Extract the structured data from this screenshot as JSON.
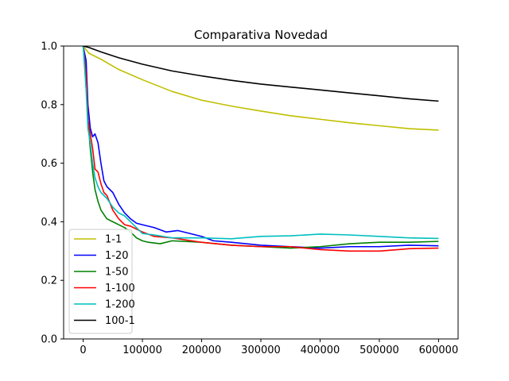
{
  "chart_data": {
    "type": "line",
    "title": "Comparativa Novedad",
    "xlabel": "",
    "ylabel": "",
    "xlim": [
      -33000,
      633000
    ],
    "ylim": [
      0.0,
      1.0
    ],
    "xticks": [
      0,
      100000,
      200000,
      300000,
      400000,
      500000,
      600000
    ],
    "xtick_labels": [
      "0",
      "100000",
      "200000",
      "300000",
      "400000",
      "500000",
      "600000"
    ],
    "yticks": [
      0.0,
      0.2,
      0.4,
      0.6,
      0.8,
      1.0
    ],
    "ytick_labels": [
      "0.0",
      "0.2",
      "0.4",
      "0.6",
      "0.8",
      "1.0"
    ],
    "grid": false,
    "legend_position": "lower-left",
    "series": [
      {
        "name": "1-1",
        "color": "#bfbf00",
        "points": [
          [
            0,
            1.0
          ],
          [
            10000,
            0.975
          ],
          [
            30000,
            0.955
          ],
          [
            60000,
            0.92
          ],
          [
            100000,
            0.885
          ],
          [
            150000,
            0.845
          ],
          [
            200000,
            0.815
          ],
          [
            250000,
            0.795
          ],
          [
            300000,
            0.778
          ],
          [
            350000,
            0.762
          ],
          [
            400000,
            0.75
          ],
          [
            450000,
            0.738
          ],
          [
            500000,
            0.728
          ],
          [
            550000,
            0.718
          ],
          [
            600000,
            0.713
          ]
        ]
      },
      {
        "name": "1-20",
        "color": "#0000ff",
        "points": [
          [
            0,
            1.0
          ],
          [
            5000,
            0.95
          ],
          [
            8000,
            0.8
          ],
          [
            12000,
            0.72
          ],
          [
            16000,
            0.69
          ],
          [
            20000,
            0.7
          ],
          [
            25000,
            0.67
          ],
          [
            30000,
            0.6
          ],
          [
            35000,
            0.54
          ],
          [
            40000,
            0.52
          ],
          [
            50000,
            0.5
          ],
          [
            60000,
            0.46
          ],
          [
            70000,
            0.43
          ],
          [
            80000,
            0.41
          ],
          [
            90000,
            0.395
          ],
          [
            100000,
            0.39
          ],
          [
            120000,
            0.38
          ],
          [
            140000,
            0.365
          ],
          [
            160000,
            0.37
          ],
          [
            180000,
            0.36
          ],
          [
            200000,
            0.35
          ],
          [
            220000,
            0.335
          ],
          [
            250000,
            0.33
          ],
          [
            300000,
            0.32
          ],
          [
            350000,
            0.315
          ],
          [
            400000,
            0.31
          ],
          [
            450000,
            0.315
          ],
          [
            500000,
            0.315
          ],
          [
            550000,
            0.32
          ],
          [
            600000,
            0.318
          ]
        ]
      },
      {
        "name": "1-50",
        "color": "#008000",
        "points": [
          [
            0,
            1.0
          ],
          [
            5000,
            0.9
          ],
          [
            8000,
            0.75
          ],
          [
            12000,
            0.65
          ],
          [
            16000,
            0.57
          ],
          [
            20000,
            0.51
          ],
          [
            25000,
            0.47
          ],
          [
            30000,
            0.44
          ],
          [
            40000,
            0.41
          ],
          [
            50000,
            0.4
          ],
          [
            60000,
            0.39
          ],
          [
            70000,
            0.38
          ],
          [
            80000,
            0.365
          ],
          [
            90000,
            0.345
          ],
          [
            100000,
            0.335
          ],
          [
            110000,
            0.33
          ],
          [
            130000,
            0.325
          ],
          [
            150000,
            0.335
          ],
          [
            200000,
            0.33
          ],
          [
            250000,
            0.32
          ],
          [
            300000,
            0.315
          ],
          [
            350000,
            0.31
          ],
          [
            400000,
            0.315
          ],
          [
            450000,
            0.325
          ],
          [
            500000,
            0.33
          ],
          [
            550000,
            0.33
          ],
          [
            600000,
            0.333
          ]
        ]
      },
      {
        "name": "1-100",
        "color": "#ff0000",
        "points": [
          [
            0,
            1.0
          ],
          [
            5000,
            0.9
          ],
          [
            8000,
            0.75
          ],
          [
            12000,
            0.7
          ],
          [
            16000,
            0.65
          ],
          [
            20000,
            0.58
          ],
          [
            25000,
            0.57
          ],
          [
            30000,
            0.53
          ],
          [
            35000,
            0.5
          ],
          [
            40000,
            0.49
          ],
          [
            50000,
            0.44
          ],
          [
            60000,
            0.41
          ],
          [
            70000,
            0.39
          ],
          [
            80000,
            0.385
          ],
          [
            90000,
            0.375
          ],
          [
            100000,
            0.365
          ],
          [
            120000,
            0.35
          ],
          [
            150000,
            0.345
          ],
          [
            200000,
            0.33
          ],
          [
            250000,
            0.32
          ],
          [
            300000,
            0.315
          ],
          [
            350000,
            0.315
          ],
          [
            400000,
            0.305
          ],
          [
            450000,
            0.3
          ],
          [
            500000,
            0.3
          ],
          [
            550000,
            0.308
          ],
          [
            600000,
            0.31
          ]
        ]
      },
      {
        "name": "1-200",
        "color": "#00bfbf",
        "points": [
          [
            0,
            1.0
          ],
          [
            5000,
            0.85
          ],
          [
            8000,
            0.72
          ],
          [
            12000,
            0.67
          ],
          [
            16000,
            0.6
          ],
          [
            20000,
            0.55
          ],
          [
            25000,
            0.52
          ],
          [
            30000,
            0.5
          ],
          [
            40000,
            0.48
          ],
          [
            50000,
            0.45
          ],
          [
            60000,
            0.43
          ],
          [
            70000,
            0.42
          ],
          [
            80000,
            0.4
          ],
          [
            90000,
            0.38
          ],
          [
            100000,
            0.36
          ],
          [
            120000,
            0.355
          ],
          [
            150000,
            0.345
          ],
          [
            200000,
            0.345
          ],
          [
            250000,
            0.342
          ],
          [
            300000,
            0.35
          ],
          [
            350000,
            0.352
          ],
          [
            400000,
            0.358
          ],
          [
            450000,
            0.355
          ],
          [
            500000,
            0.35
          ],
          [
            550000,
            0.345
          ],
          [
            600000,
            0.343
          ]
        ]
      },
      {
        "name": "100-1",
        "color": "#000000",
        "points": [
          [
            0,
            1.0
          ],
          [
            10000,
            0.995
          ],
          [
            30000,
            0.98
          ],
          [
            60000,
            0.96
          ],
          [
            100000,
            0.938
          ],
          [
            150000,
            0.915
          ],
          [
            200000,
            0.898
          ],
          [
            250000,
            0.883
          ],
          [
            300000,
            0.87
          ],
          [
            350000,
            0.86
          ],
          [
            400000,
            0.85
          ],
          [
            450000,
            0.84
          ],
          [
            500000,
            0.83
          ],
          [
            550000,
            0.82
          ],
          [
            600000,
            0.812
          ]
        ]
      }
    ]
  }
}
